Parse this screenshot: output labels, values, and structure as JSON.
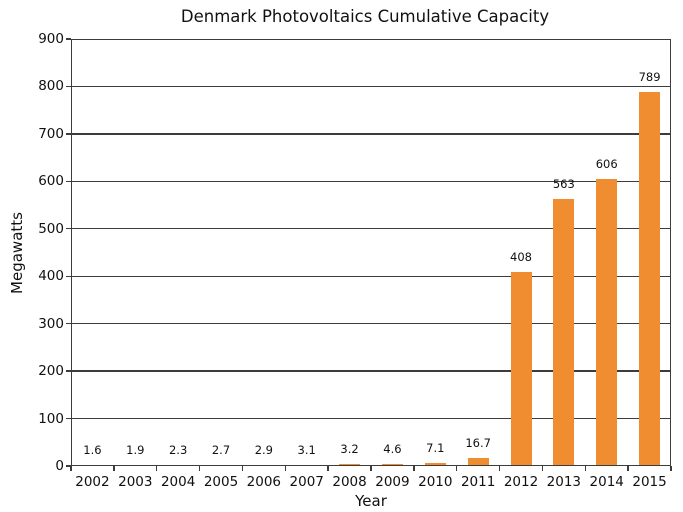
{
  "chart_data": {
    "type": "bar",
    "title": "Denmark Photovoltaics Cumulative Capacity",
    "xlabel": "Year",
    "ylabel": "Megawatts",
    "categories": [
      "2002",
      "2003",
      "2004",
      "2005",
      "2006",
      "2007",
      "2008",
      "2009",
      "2010",
      "2011",
      "2012",
      "2013",
      "2014",
      "2015"
    ],
    "values": [
      1.6,
      1.9,
      2.3,
      2.7,
      2.9,
      3.1,
      3.2,
      4.6,
      7.1,
      16.7,
      408,
      563,
      606,
      789
    ],
    "bar_labels": [
      "1.6",
      "1.9",
      "2.3",
      "2.7",
      "2.9",
      "3.1",
      "3.2",
      "4.6",
      "7.1",
      "16.7",
      "408",
      "563",
      "606",
      "789"
    ],
    "ylim": [
      0,
      900
    ],
    "yticks": [
      0,
      100,
      200,
      300,
      400,
      500,
      600,
      700,
      800,
      900
    ],
    "grid": true,
    "legend_position": "none",
    "colors": {
      "bar": "#EF8D30",
      "axis": "#3C3C3C",
      "grid": "#3C3C3C",
      "text": "#111111",
      "background": "#FFFFFF"
    }
  }
}
